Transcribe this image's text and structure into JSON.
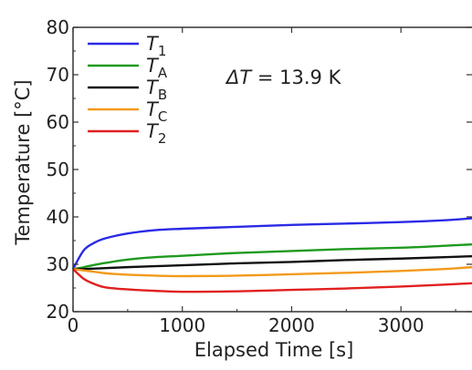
{
  "chart_data": {
    "type": "line",
    "title": "",
    "xlabel": "Elapsed Time [s]",
    "ylabel": "Temperature [°C]",
    "xlim": [
      0,
      3650
    ],
    "ylim": [
      20,
      80
    ],
    "xticks": [
      0,
      1000,
      2000,
      3000
    ],
    "yticks": [
      20,
      30,
      40,
      50,
      60,
      70,
      80
    ],
    "grid": false,
    "legend": "top-left",
    "annotation": "ΔT = 13.9 K",
    "series": [
      {
        "name": "T1",
        "color": "#2a2ae6",
        "x": [
          0,
          100,
          200,
          300,
          500,
          750,
          1000,
          1500,
          2000,
          2500,
          3000,
          3400,
          3650
        ],
        "y": [
          29.0,
          33.0,
          34.6,
          35.5,
          36.5,
          37.2,
          37.5,
          37.9,
          38.3,
          38.6,
          38.9,
          39.3,
          39.7
        ]
      },
      {
        "name": "TA",
        "color": "#1f9a1f",
        "x": [
          0,
          100,
          200,
          300,
          500,
          750,
          1000,
          1500,
          2000,
          2500,
          3000,
          3400,
          3650
        ],
        "y": [
          29.0,
          29.4,
          29.9,
          30.3,
          31.0,
          31.5,
          31.8,
          32.4,
          32.8,
          33.2,
          33.5,
          33.9,
          34.2
        ]
      },
      {
        "name": "TB",
        "color": "#111111",
        "x": [
          0,
          100,
          200,
          300,
          500,
          750,
          1000,
          1500,
          2000,
          2500,
          3000,
          3400,
          3650
        ],
        "y": [
          29.0,
          29.0,
          29.1,
          29.2,
          29.4,
          29.6,
          29.8,
          30.2,
          30.5,
          30.9,
          31.2,
          31.5,
          31.7
        ]
      },
      {
        "name": "TC",
        "color": "#f39a1a",
        "x": [
          0,
          100,
          200,
          300,
          500,
          750,
          1000,
          1500,
          2000,
          2500,
          3000,
          3400,
          3650
        ],
        "y": [
          29.0,
          28.7,
          28.4,
          28.1,
          27.8,
          27.6,
          27.5,
          27.6,
          27.9,
          28.2,
          28.6,
          29.0,
          29.4
        ]
      },
      {
        "name": "T2",
        "color": "#e02020",
        "x": [
          0,
          100,
          200,
          300,
          500,
          750,
          1000,
          1500,
          2000,
          2500,
          3000,
          3400,
          3650
        ],
        "y": [
          29.0,
          26.9,
          25.8,
          25.1,
          24.7,
          24.4,
          24.2,
          24.3,
          24.6,
          24.9,
          25.3,
          25.7,
          26.0
        ]
      }
    ]
  },
  "legend_labels": [
    {
      "base": "T",
      "sub": "1"
    },
    {
      "base": "T",
      "sub": "A"
    },
    {
      "base": "T",
      "sub": "B"
    },
    {
      "base": "T",
      "sub": "C"
    },
    {
      "base": "T",
      "sub": "2"
    }
  ],
  "annotation_parts": {
    "delta": "Δ",
    "var": "T",
    "rest": " = 13.9 K"
  }
}
